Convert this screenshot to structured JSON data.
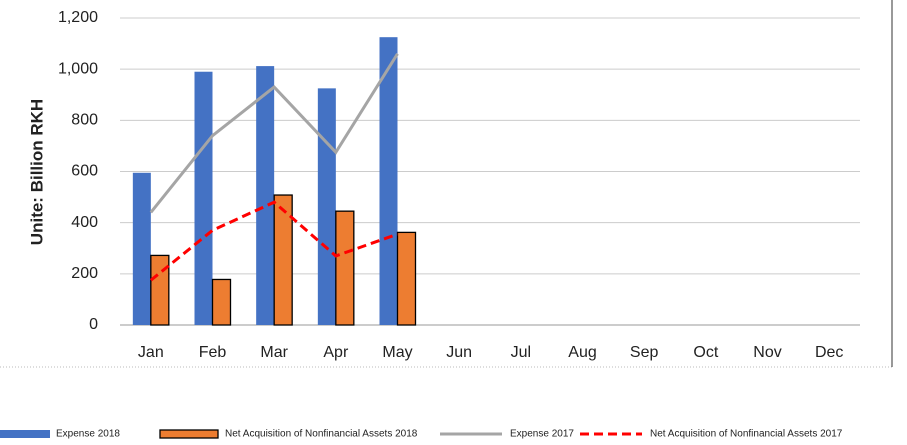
{
  "chart_data": {
    "type": "combo",
    "y_label": "Unite: Billion RKH",
    "categories": [
      "Jan",
      "Feb",
      "Mar",
      "Apr",
      "May",
      "Jun",
      "Jul",
      "Aug",
      "Sep",
      "Oct",
      "Nov",
      "Dec"
    ],
    "series": [
      {
        "name": "Expense 2018",
        "type": "bar",
        "color": "#4472c4",
        "values": [
          595,
          990,
          1012,
          925,
          1125,
          null,
          null,
          null,
          null,
          null,
          null,
          null
        ]
      },
      {
        "name": "Net Acquisition of Nonfinancial Assets 2018",
        "type": "bar",
        "color": "#ed7d31",
        "values": [
          272,
          178,
          508,
          445,
          362,
          null,
          null,
          null,
          null,
          null,
          null,
          null
        ]
      },
      {
        "name": "Expense 2017",
        "type": "line",
        "color": "#a5a5a5",
        "values": [
          440,
          740,
          930,
          675,
          1060,
          null,
          null,
          null,
          null,
          null,
          null,
          null
        ]
      },
      {
        "name": "Net Acquisition of Nonfinancial Assets 2017",
        "type": "line",
        "color": "#ff0000",
        "dashed": true,
        "values": [
          175,
          370,
          480,
          270,
          355,
          null,
          null,
          null,
          null,
          null,
          null,
          null
        ]
      }
    ],
    "ylim": [
      0,
      1200
    ],
    "yticks": [
      0,
      200,
      400,
      600,
      800,
      {
        "value": 1000,
        "label": "1,000"
      },
      {
        "value": 1200,
        "label": "1,200"
      }
    ],
    "grid": true,
    "legend": "bottom"
  }
}
